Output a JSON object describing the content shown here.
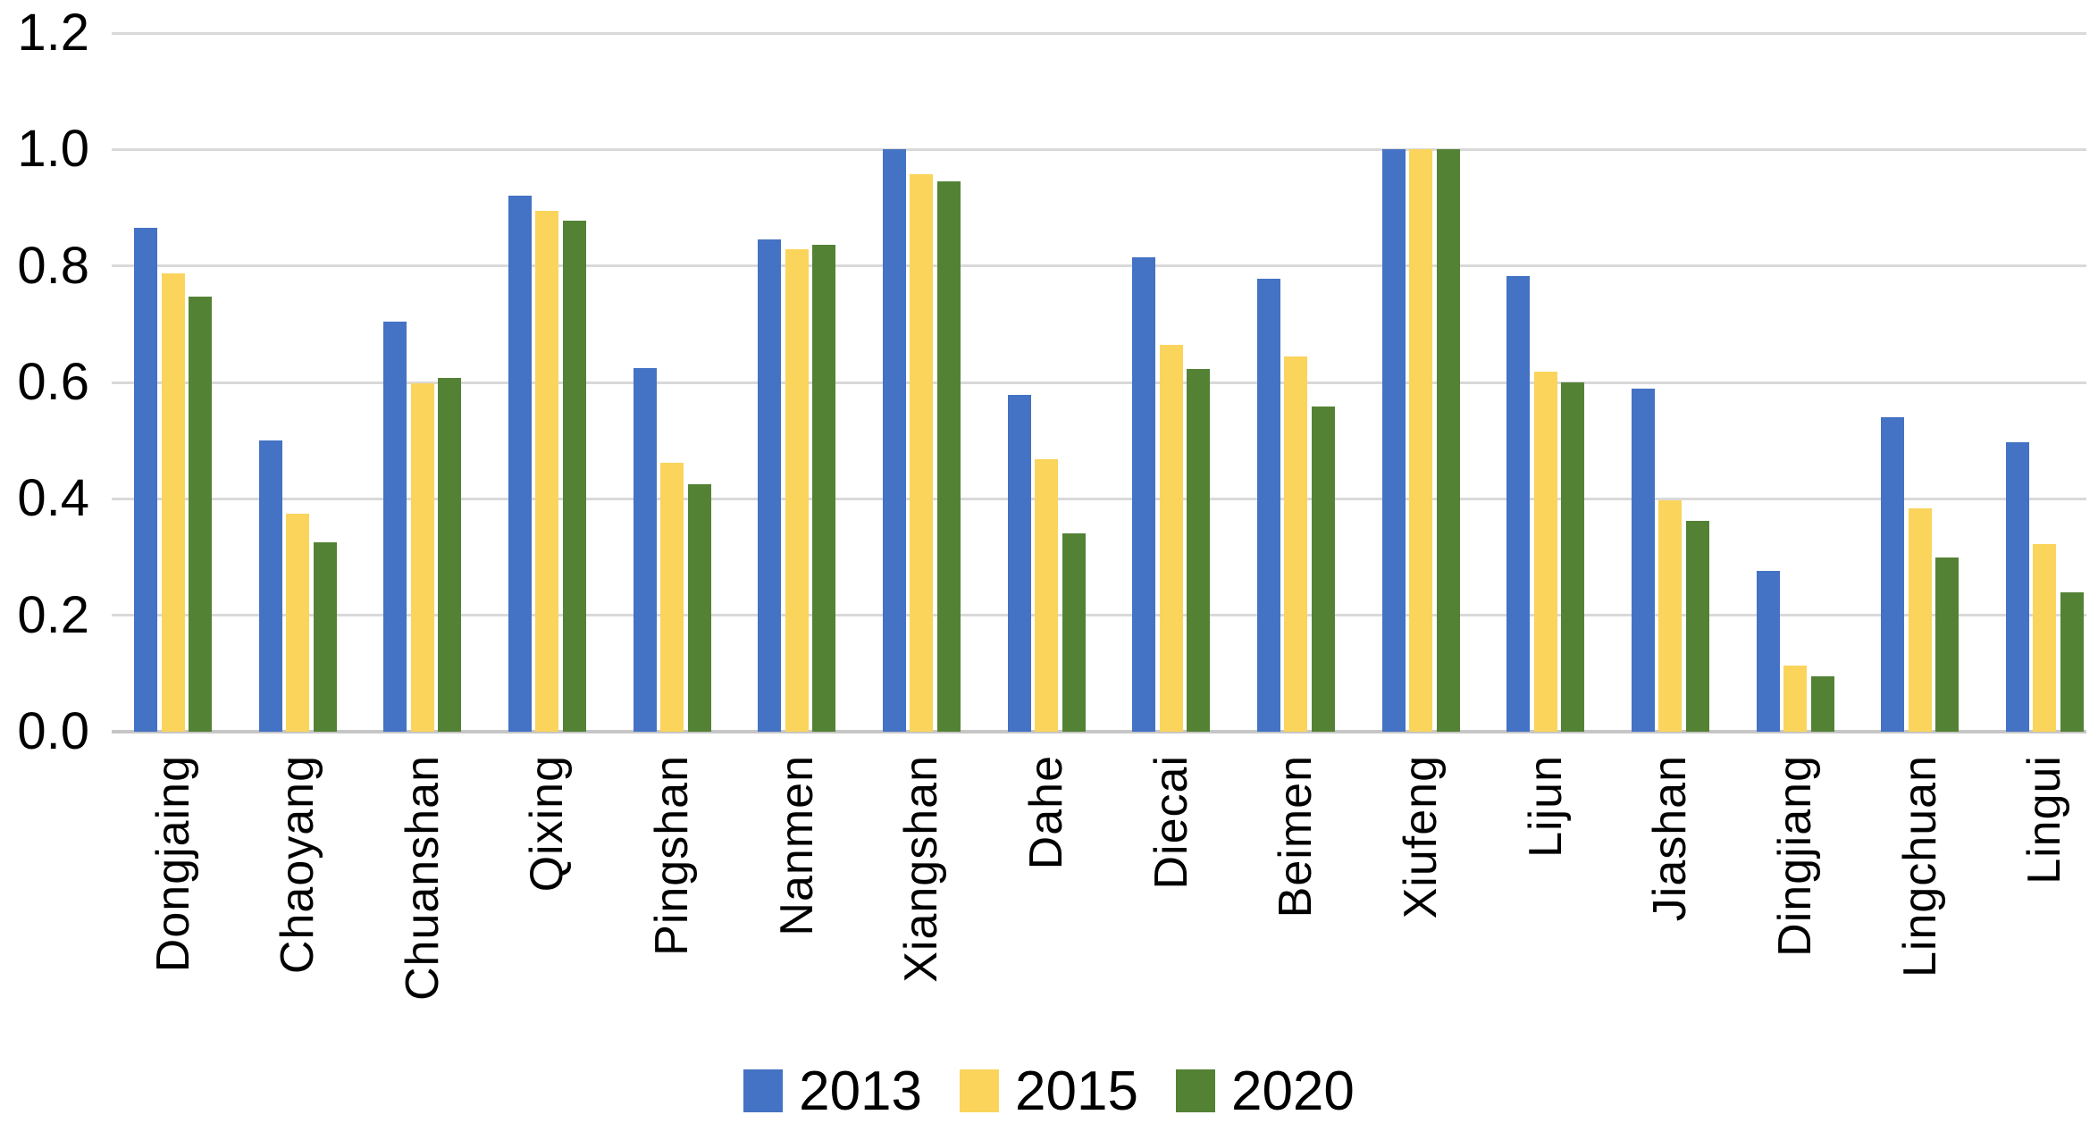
{
  "chart_data": {
    "type": "bar",
    "title": "",
    "categories": [
      "Dongjaing",
      "Chaoyang",
      "Chuanshan",
      "Qixing",
      "Pingshan",
      "Nanmen",
      "Xiangshan",
      "Dahe",
      "Diecai",
      "Beimen",
      "Xiufeng",
      "Lijun",
      "Jiashan",
      "Dingjiang",
      "Lingchuan",
      "Lingui"
    ],
    "series": [
      {
        "name": "2013",
        "color": "#4472C4",
        "values": [
          0.865,
          0.5,
          0.705,
          0.92,
          0.625,
          0.845,
          1.0,
          0.578,
          0.815,
          0.778,
          1.0,
          0.783,
          0.59,
          0.277,
          0.54,
          0.497
        ]
      },
      {
        "name": "2015",
        "color": "#FBD45C",
        "values": [
          0.788,
          0.375,
          0.598,
          0.895,
          0.462,
          0.828,
          0.957,
          0.468,
          0.665,
          0.645,
          1.0,
          0.618,
          0.398,
          0.113,
          0.383,
          0.323
        ]
      },
      {
        "name": "2020",
        "color": "#548235",
        "values": [
          0.748,
          0.325,
          0.608,
          0.878,
          0.425,
          0.836,
          0.945,
          0.34,
          0.623,
          0.558,
          1.0,
          0.6,
          0.362,
          0.095,
          0.3,
          0.24
        ]
      }
    ],
    "y_axis": {
      "min": 0,
      "max": 1.2,
      "step": 0.2,
      "tick_labels": [
        "0.0",
        "0.2",
        "0.4",
        "0.6",
        "0.8",
        "1.0",
        "1.2"
      ]
    },
    "grid": true,
    "legend_position": "bottom",
    "legend_labels": [
      "2013",
      "2015",
      "2020"
    ]
  },
  "colors": {
    "background": "#FFFFFF",
    "gridline": "#D9D9D9",
    "baseline": "#C6C6C6",
    "text": "#000000",
    "series_2013": "#4472C4",
    "series_2015": "#FBD45C",
    "series_2020": "#548235"
  }
}
